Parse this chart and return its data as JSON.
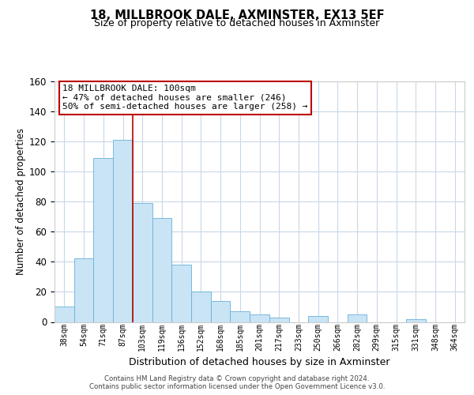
{
  "title": "18, MILLBROOK DALE, AXMINSTER, EX13 5EF",
  "subtitle": "Size of property relative to detached houses in Axminster",
  "xlabel": "Distribution of detached houses by size in Axminster",
  "ylabel": "Number of detached properties",
  "categories": [
    "38sqm",
    "54sqm",
    "71sqm",
    "87sqm",
    "103sqm",
    "119sqm",
    "136sqm",
    "152sqm",
    "168sqm",
    "185sqm",
    "201sqm",
    "217sqm",
    "233sqm",
    "250sqm",
    "266sqm",
    "282sqm",
    "299sqm",
    "315sqm",
    "331sqm",
    "348sqm",
    "364sqm"
  ],
  "values": [
    10,
    42,
    109,
    121,
    79,
    69,
    38,
    20,
    14,
    7,
    5,
    3,
    0,
    4,
    0,
    5,
    0,
    0,
    2,
    0,
    0
  ],
  "bar_color": "#c8e4f5",
  "bar_edge_color": "#6ab0d8",
  "reference_line_x": 3.5,
  "reference_line_color": "#bb0000",
  "annotation_line1": "18 MILLBROOK DALE: 100sqm",
  "annotation_line2": "← 47% of detached houses are smaller (246)",
  "annotation_line3": "50% of semi-detached houses are larger (258) →",
  "annotation_box_color": "#ffffff",
  "annotation_box_edge_color": "#bb0000",
  "ylim": [
    0,
    160
  ],
  "yticks": [
    0,
    20,
    40,
    60,
    80,
    100,
    120,
    140,
    160
  ],
  "footer_text": "Contains HM Land Registry data © Crown copyright and database right 2024.\nContains public sector information licensed under the Open Government Licence v3.0.",
  "background_color": "#ffffff",
  "grid_color": "#c8d8e8",
  "title_fontsize": 10.5,
  "subtitle_fontsize": 9,
  "ylabel_fontsize": 8.5,
  "xlabel_fontsize": 9
}
